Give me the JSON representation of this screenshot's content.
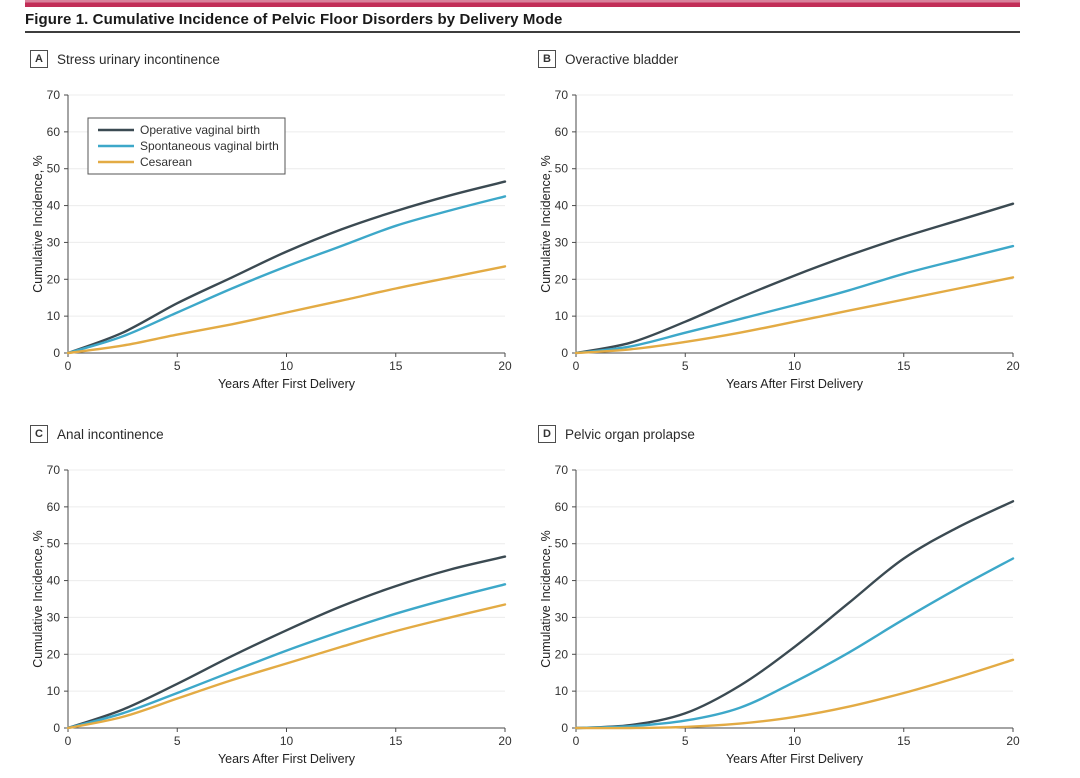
{
  "figure": {
    "title": "Figure 1. Cumulative Incidence of Pelvic Floor Disorders by Delivery Mode",
    "accent_color": "#c22d57",
    "rule_color": "#3d3d3d"
  },
  "style": {
    "axis_color": "#4a4a4a",
    "grid_color": "#ececec",
    "text_color": "#333333",
    "series_colors": {
      "operative": "#3b4a52",
      "spontaneous": "#3da8c9",
      "cesarean": "#e3ab44"
    }
  },
  "chart_data": [
    {
      "panel": "A",
      "title": "Stress urinary incontinence",
      "type": "line",
      "xlabel": "Years After First Delivery",
      "ylabel": "Cumulative Incidence, %",
      "xlim": [
        0,
        20
      ],
      "ylim": [
        0,
        70
      ],
      "xticks": [
        0,
        5,
        10,
        15,
        20
      ],
      "yticks": [
        0,
        10,
        20,
        30,
        40,
        50,
        60,
        70
      ],
      "grid": true,
      "legend": true,
      "x": [
        0,
        2.5,
        5,
        7.5,
        10,
        12.5,
        15,
        17.5,
        20
      ],
      "series": [
        {
          "name": "Operative vaginal birth",
          "color": "#3b4a52",
          "values": [
            0,
            5.5,
            13.5,
            20.5,
            27.5,
            33.5,
            38.5,
            42.8,
            46.5
          ]
        },
        {
          "name": "Spontaneous vaginal birth",
          "color": "#3da8c9",
          "values": [
            0,
            4.5,
            11,
            17.5,
            23.5,
            29,
            34.5,
            38.7,
            42.5
          ]
        },
        {
          "name": "Cesarean",
          "color": "#e3ab44",
          "values": [
            0,
            2,
            5,
            7.8,
            11,
            14.2,
            17.5,
            20.5,
            23.5
          ]
        }
      ]
    },
    {
      "panel": "B",
      "title": "Overactive bladder",
      "type": "line",
      "xlabel": "Years After First Delivery",
      "ylabel": "Cumulative Incidence, %",
      "xlim": [
        0,
        20
      ],
      "ylim": [
        0,
        70
      ],
      "xticks": [
        0,
        5,
        10,
        15,
        20
      ],
      "yticks": [
        0,
        10,
        20,
        30,
        40,
        50,
        60,
        70
      ],
      "grid": true,
      "legend": false,
      "x": [
        0,
        2.5,
        5,
        7.5,
        10,
        12.5,
        15,
        17.5,
        20
      ],
      "series": [
        {
          "name": "Operative vaginal birth",
          "color": "#3b4a52",
          "values": [
            0,
            2.8,
            8.5,
            15,
            21,
            26.5,
            31.5,
            36,
            40.5
          ]
        },
        {
          "name": "Spontaneous vaginal birth",
          "color": "#3da8c9",
          "values": [
            0,
            1.8,
            5.5,
            9.2,
            13,
            17,
            21.5,
            25.3,
            29
          ]
        },
        {
          "name": "Cesarean",
          "color": "#e3ab44",
          "values": [
            0,
            1,
            3,
            5.5,
            8.5,
            11.5,
            14.5,
            17.5,
            20.5
          ]
        }
      ]
    },
    {
      "panel": "C",
      "title": "Anal incontinence",
      "type": "line",
      "xlabel": "Years After First Delivery",
      "ylabel": "Cumulative Incidence, %",
      "xlim": [
        0,
        20
      ],
      "ylim": [
        0,
        70
      ],
      "xticks": [
        0,
        5,
        10,
        15,
        20
      ],
      "yticks": [
        0,
        10,
        20,
        30,
        40,
        50,
        60,
        70
      ],
      "grid": true,
      "legend": false,
      "x": [
        0,
        2.5,
        5,
        7.5,
        10,
        12.5,
        15,
        17.5,
        20
      ],
      "series": [
        {
          "name": "Operative vaginal birth",
          "color": "#3b4a52",
          "values": [
            0,
            5,
            12,
            19.5,
            26.5,
            33,
            38.5,
            43,
            46.5
          ]
        },
        {
          "name": "Spontaneous vaginal birth",
          "color": "#3da8c9",
          "values": [
            0,
            4,
            9.5,
            15.3,
            21,
            26.2,
            31,
            35.2,
            39
          ]
        },
        {
          "name": "Cesarean",
          "color": "#e3ab44",
          "values": [
            0,
            3,
            8,
            13,
            17.5,
            22,
            26.3,
            30,
            33.5
          ]
        }
      ]
    },
    {
      "panel": "D",
      "title": "Pelvic organ prolapse",
      "type": "line",
      "xlabel": "Years After First Delivery",
      "ylabel": "Cumulative Incidence, %",
      "xlim": [
        0,
        20
      ],
      "ylim": [
        0,
        70
      ],
      "xticks": [
        0,
        5,
        10,
        15,
        20
      ],
      "yticks": [
        0,
        10,
        20,
        30,
        40,
        50,
        60,
        70
      ],
      "grid": true,
      "legend": false,
      "x": [
        0,
        2.5,
        5,
        7.5,
        10,
        12.5,
        15,
        17.5,
        20
      ],
      "series": [
        {
          "name": "Operative vaginal birth",
          "color": "#3b4a52",
          "values": [
            0,
            0.8,
            4,
            11.5,
            22,
            34,
            46,
            54.5,
            61.5
          ]
        },
        {
          "name": "Spontaneous vaginal birth",
          "color": "#3da8c9",
          "values": [
            0,
            0.5,
            2,
            5.5,
            12.5,
            20.5,
            29.5,
            38,
            46
          ]
        },
        {
          "name": "Cesarean",
          "color": "#e3ab44",
          "values": [
            0,
            0,
            0.3,
            1.2,
            3,
            5.8,
            9.5,
            13.8,
            18.5
          ]
        }
      ]
    }
  ]
}
